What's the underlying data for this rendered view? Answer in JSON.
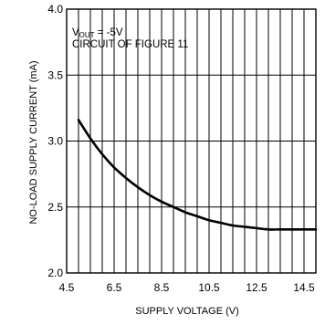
{
  "chart_data": {
    "type": "line",
    "xlabel": "SUPPLY VOLTAGE (V)",
    "ylabel": "NO-LOAD SUPPLY CURRENT (mA)",
    "xlim": [
      4.5,
      15.0
    ],
    "ylim": [
      2.0,
      4.0
    ],
    "x_ticks": [
      4.5,
      6.5,
      8.5,
      10.5,
      12.5,
      14.5
    ],
    "x_tick_labels": [
      "4.5",
      "6.5",
      "8.5",
      "10.5",
      "12.5",
      "14.5"
    ],
    "y_ticks": [
      2.0,
      2.5,
      3.0,
      3.5,
      4.0
    ],
    "y_tick_labels": [
      "2.0",
      "2.5",
      "3.0",
      "3.5",
      "4.0"
    ],
    "grid": true,
    "annotations": {
      "line1_main": "V",
      "line1_sub": "OUT",
      "line1_rest": " = -5V",
      "line2": "CIRCUIT OF FIGURE 11"
    },
    "series": [
      {
        "x": [
          5.0,
          5.5,
          6.0,
          6.5,
          7.0,
          7.5,
          8.0,
          8.5,
          9.0,
          9.5,
          10.0,
          10.5,
          11.0,
          11.5,
          12.0,
          12.5,
          13.0,
          13.5,
          14.0,
          14.5,
          15.0
        ],
        "values": [
          3.16,
          3.02,
          2.9,
          2.8,
          2.72,
          2.65,
          2.59,
          2.54,
          2.5,
          2.46,
          2.43,
          2.4,
          2.38,
          2.36,
          2.35,
          2.34,
          2.33,
          2.33,
          2.33,
          2.33,
          2.33
        ]
      }
    ]
  }
}
